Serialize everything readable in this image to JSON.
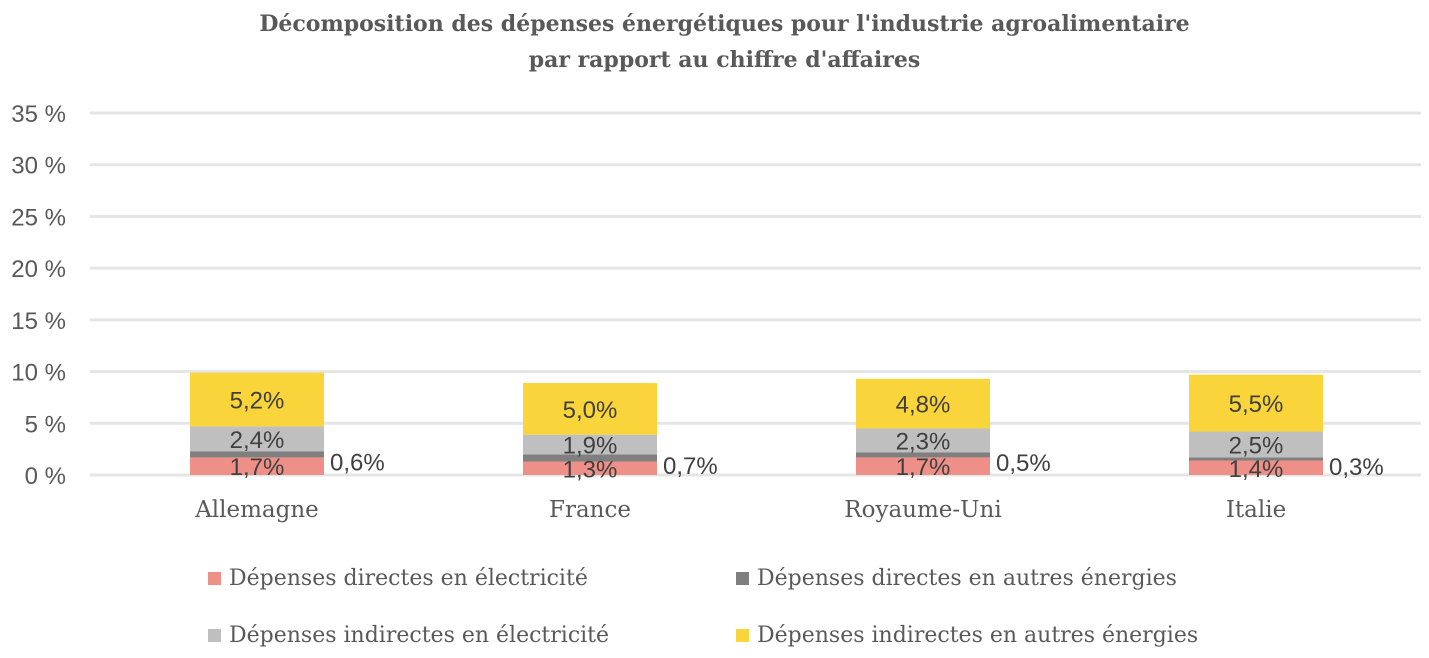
{
  "chart_data": {
    "type": "bar",
    "stacked": true,
    "title_line1": "Décomposition des dépenses énergétiques pour l'industrie agroalimentaire",
    "title_line2": "par rapport au chiffre d'affaires",
    "categories": [
      "Allemagne",
      "France",
      "Royaume-Uni",
      "Italie"
    ],
    "ylim": [
      0,
      35
    ],
    "yticks": [
      "0 %",
      "5 %",
      "10 %",
      "15 %",
      "20 %",
      "25 %",
      "30 %",
      "35 %"
    ],
    "grid": true,
    "legend_position": "bottom",
    "series": [
      {
        "name": "Dépenses directes en électricité",
        "color": "#ee9087",
        "values": [
          1.7,
          1.3,
          1.7,
          1.4
        ],
        "labels": [
          "1,7%",
          "1,3%",
          "1,7%",
          "1,4%"
        ]
      },
      {
        "name": "Dépenses directes en autres énergies",
        "color": "#7f7f7f",
        "values": [
          0.6,
          0.7,
          0.5,
          0.3
        ],
        "labels": [
          "0,6%",
          "0,7%",
          "0,5%",
          "0,3%"
        ]
      },
      {
        "name": "Dépenses indirectes en électricité",
        "color": "#bfbfbf",
        "values": [
          2.4,
          1.9,
          2.3,
          2.5
        ],
        "labels": [
          "2,4%",
          "1,9%",
          "2,3%",
          "2,5%"
        ]
      },
      {
        "name": "Dépenses indirectes en autres énergies",
        "color": "#f9d43a",
        "values": [
          5.2,
          5.0,
          4.8,
          5.5
        ],
        "labels": [
          "5,2%",
          "5,0%",
          "4,8%",
          "5,5%"
        ]
      }
    ]
  }
}
